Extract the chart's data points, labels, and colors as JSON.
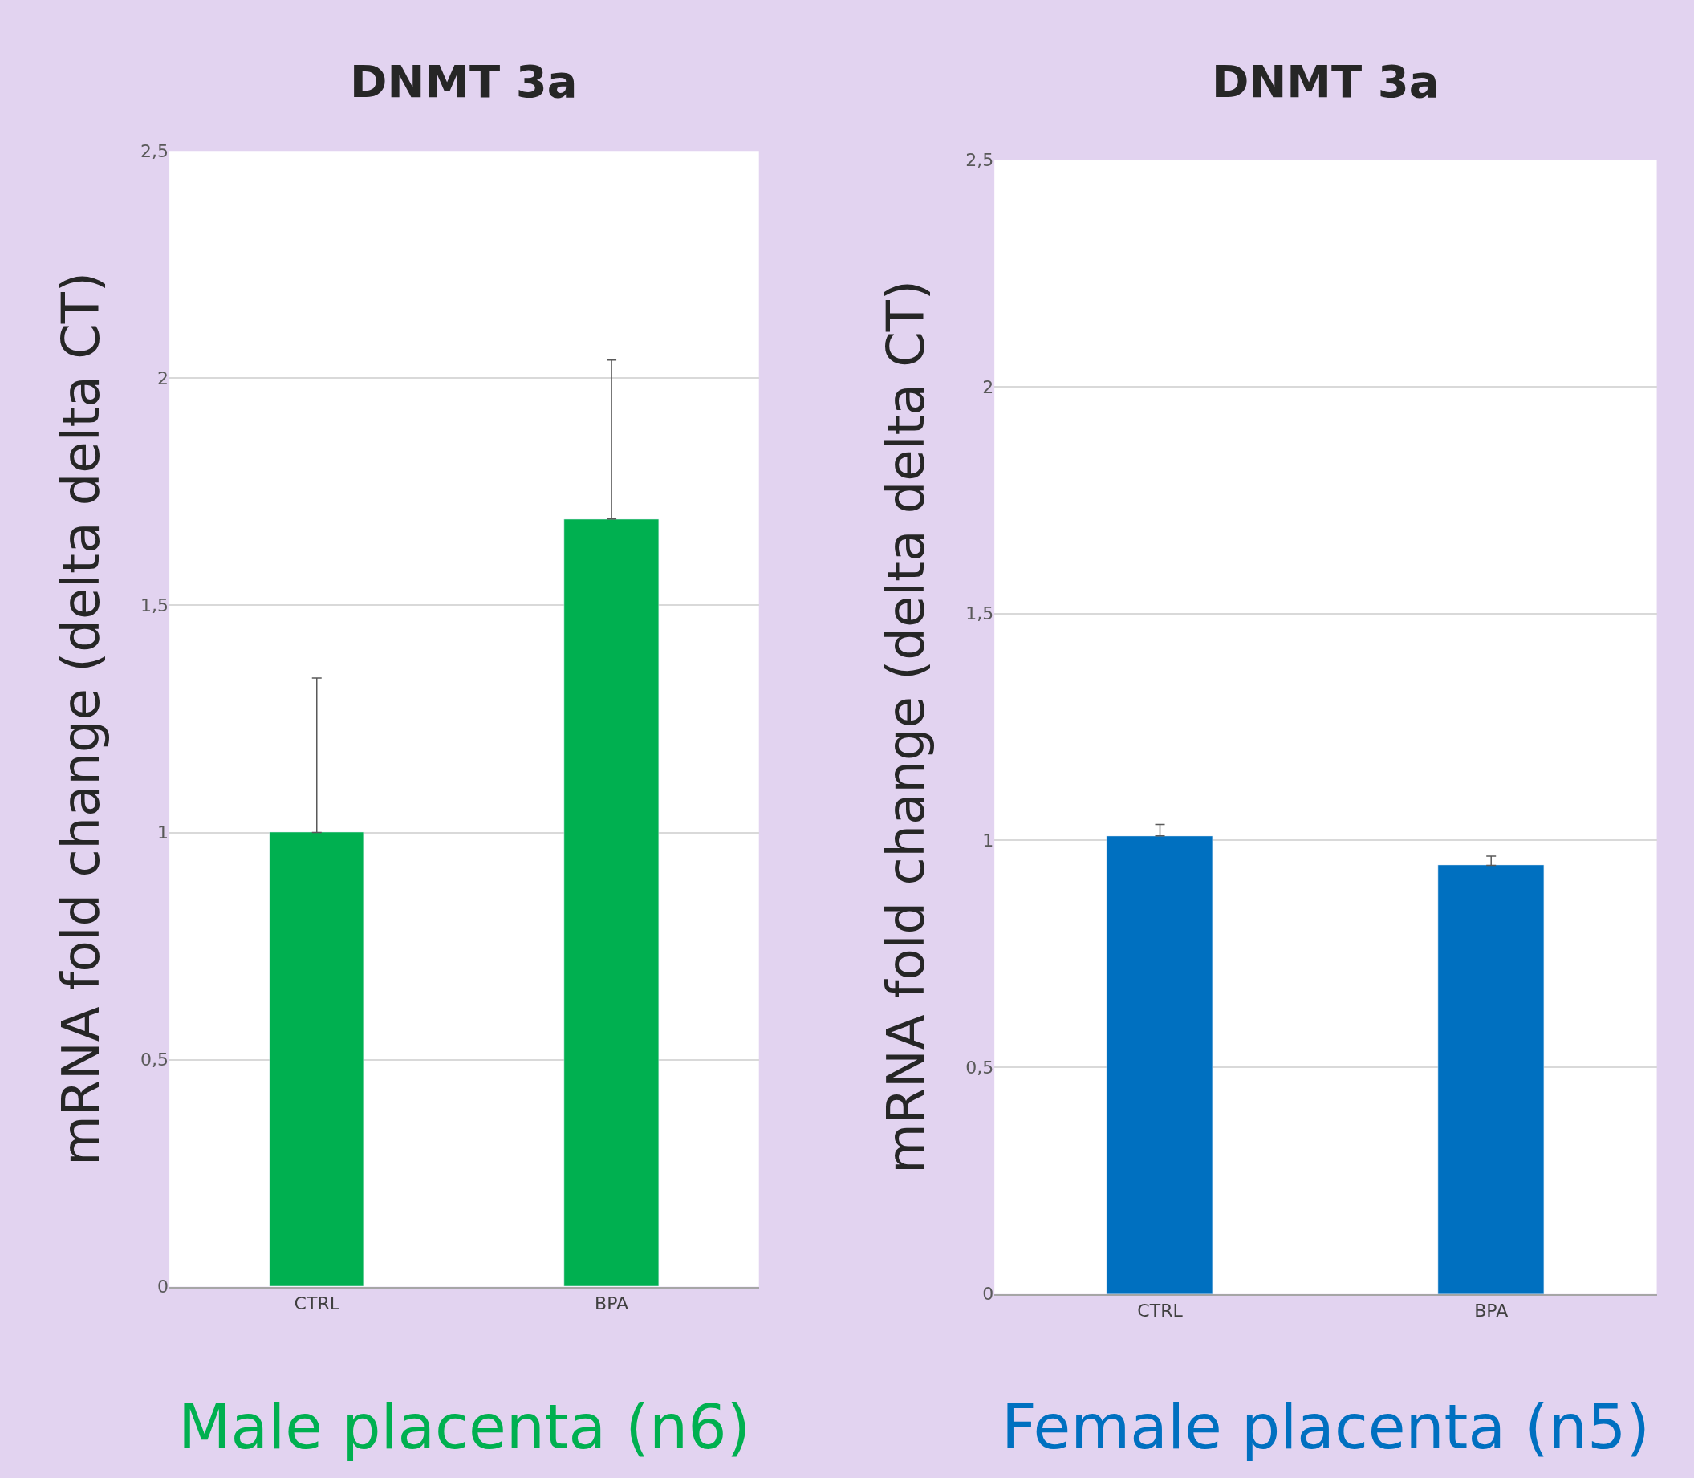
{
  "chart_data": [
    {
      "type": "bar",
      "title": "DNMT 3a",
      "ylabel": "mRNA fold change (delta delta CT)",
      "categories": [
        "CTRL",
        "BPA"
      ],
      "series": [
        {
          "color": "#00b050",
          "values": [
            1.0,
            1.69
          ],
          "errors": [
            [
              1.0,
              1.34
            ],
            [
              1.69,
              2.04
            ]
          ]
        }
      ],
      "ylim": [
        0,
        2.5
      ],
      "yticks": [
        0,
        {
          "value": 0.5,
          "label": "0,5"
        },
        1,
        {
          "value": 1.5,
          "label": "1,5"
        },
        2,
        {
          "value": 2.5,
          "label": "2,5"
        }
      ],
      "grid": "y",
      "annotations": [
        "Male placenta (n6)"
      ]
    },
    {
      "type": "bar",
      "title": "DNMT 3a",
      "ylabel": "mRNA fold change (delta delta CT)",
      "categories": [
        "CTRL",
        "BPA"
      ],
      "series": [
        {
          "color": "#0070c0",
          "values": [
            1.01,
            0.945
          ],
          "errors": [
            [
              1.01,
              1.035
            ],
            [
              0.945,
              0.965
            ]
          ]
        }
      ],
      "ylim": [
        0,
        2.5
      ],
      "yticks": [
        0,
        {
          "value": 0.5,
          "label": "0,5"
        },
        1,
        {
          "value": 1.5,
          "label": "1,5"
        },
        2,
        {
          "value": 2.5,
          "label": "2,5"
        }
      ],
      "grid": "y",
      "annotations": [
        "Female placenta (n5)"
      ]
    }
  ]
}
